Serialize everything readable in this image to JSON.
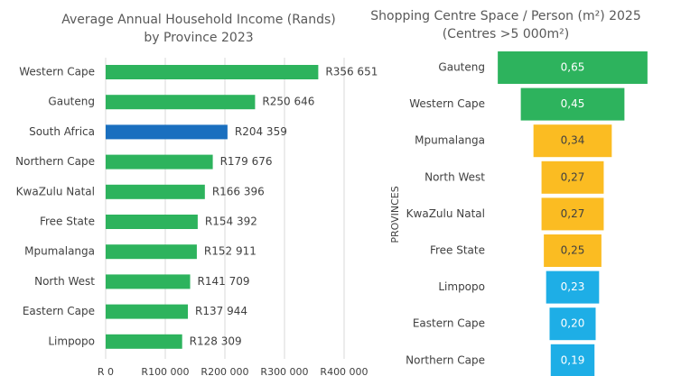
{
  "chart_data": [
    {
      "type": "bar",
      "orientation": "horizontal",
      "title": "Average Annual Household Income (Rands) by Province 2023",
      "categories": [
        "Western Cape",
        "Gauteng",
        "South Africa",
        "Northern Cape",
        "KwaZulu Natal",
        "Free State",
        "Mpumalanga",
        "North West",
        "Eastern Cape",
        "Limpopo"
      ],
      "values": [
        356651,
        250646,
        204359,
        179676,
        166396,
        154392,
        152911,
        141709,
        137944,
        128309
      ],
      "value_labels": [
        "R356 651",
        "R250 646",
        "R204 359",
        "R179 676",
        "R166 396",
        "R154 392",
        "R152 911",
        "R141 709",
        "R137 944",
        "R128 309"
      ],
      "colors": [
        "#2db35d",
        "#2db35d",
        "#1a6fbf",
        "#2db35d",
        "#2db35d",
        "#2db35d",
        "#2db35d",
        "#2db35d",
        "#2db35d",
        "#2db35d"
      ],
      "xlim": [
        0,
        400000
      ],
      "xticks": [
        {
          "value": 0,
          "label": "R 0"
        },
        {
          "value": 100000,
          "label": "R100 000"
        },
        {
          "value": 200000,
          "label": "R200 000"
        },
        {
          "value": 300000,
          "label": "R300 000"
        },
        {
          "value": 400000,
          "label": "R400 000"
        }
      ],
      "grid": true
    },
    {
      "type": "funnel",
      "title": "Shopping Centre Space / Person (m²) 2025 (Centres >5 000m²)",
      "ylabel": "PROVINCES",
      "categories": [
        "Gauteng",
        "Western Cape",
        "Mpumalanga",
        "North West",
        "KwaZulu Natal",
        "Free State",
        "Limpopo",
        "Eastern Cape",
        "Northern Cape"
      ],
      "values": [
        0.65,
        0.45,
        0.34,
        0.27,
        0.27,
        0.25,
        0.23,
        0.2,
        0.19
      ],
      "value_labels": [
        "0,65",
        "0,45",
        "0,34",
        "0,27",
        "0,27",
        "0,25",
        "0,23",
        "0,20",
        "0,19"
      ],
      "colors": [
        "#2db35d",
        "#2db35d",
        "#fbbc22",
        "#fbbc22",
        "#fbbc22",
        "#fbbc22",
        "#1eaee6",
        "#1eaee6",
        "#1eaee6"
      ]
    }
  ]
}
